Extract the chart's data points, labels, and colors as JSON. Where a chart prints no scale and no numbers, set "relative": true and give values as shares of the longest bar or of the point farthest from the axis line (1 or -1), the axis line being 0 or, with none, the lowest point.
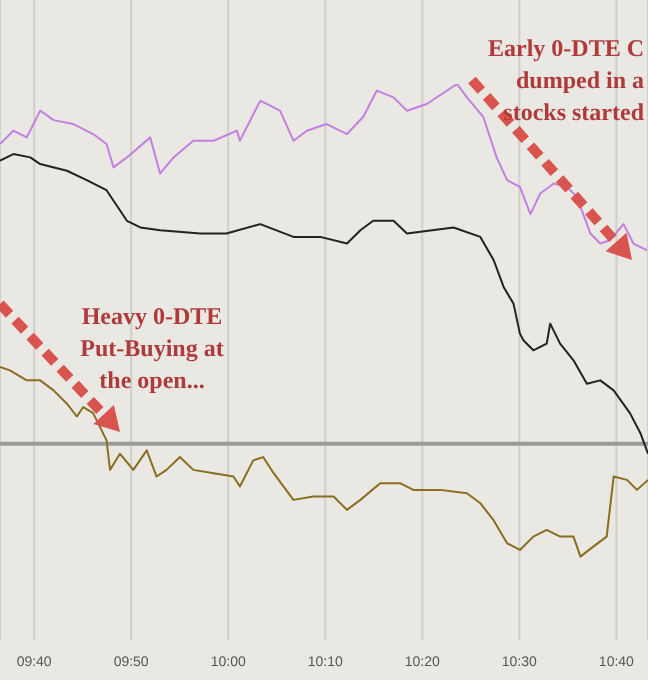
{
  "chart_data": {
    "type": "line",
    "relative": true,
    "grid": "x",
    "xlim": [
      9.608,
      10.721
    ],
    "xticks": [
      {
        "value": 9.6667,
        "label": "09:40"
      },
      {
        "value": 9.8333,
        "label": "09:50"
      },
      {
        "value": 10,
        "label": "10:00"
      },
      {
        "value": 10.1667,
        "label": "10:10"
      },
      {
        "value": 10.3333,
        "label": "10:20"
      },
      {
        "value": 10.5,
        "label": "10:30"
      },
      {
        "value": 10.6667,
        "label": "10:40"
      }
    ],
    "annotations": [
      "Early 0-DTE C\ndumped in a\nstocks started",
      "Heavy 0-DTE\nPut-Buying at\nthe open..."
    ],
    "ref_lines": [
      {
        "axis": "y",
        "value": 0.353,
        "color": "#9a9a9a"
      }
    ],
    "series": [
      {
        "color": "#c47fe0",
        "x": [
          9.608,
          9.631,
          9.654,
          9.677,
          9.7,
          9.734,
          9.768,
          9.791,
          9.803,
          9.826,
          9.866,
          9.883,
          9.906,
          9.94,
          9.975,
          10.015,
          10.02,
          10.055,
          10.089,
          10.112,
          10.135,
          10.169,
          10.204,
          10.232,
          10.255,
          10.284,
          10.307,
          10.341,
          10.393,
          10.41,
          10.438,
          10.461,
          10.479,
          10.501,
          10.519,
          10.536,
          10.559,
          10.582,
          10.599,
          10.622,
          10.639,
          10.656,
          10.679,
          10.696,
          10.719
        ],
        "values": [
          0.892,
          0.916,
          0.904,
          0.952,
          0.935,
          0.928,
          0.91,
          0.892,
          0.85,
          0.868,
          0.904,
          0.839,
          0.868,
          0.898,
          0.898,
          0.916,
          0.898,
          0.97,
          0.952,
          0.898,
          0.916,
          0.928,
          0.91,
          0.941,
          0.988,
          0.976,
          0.952,
          0.964,
          1.0,
          0.976,
          0.941,
          0.868,
          0.827,
          0.815,
          0.766,
          0.803,
          0.821,
          0.815,
          0.797,
          0.731,
          0.713,
          0.719,
          0.748,
          0.713,
          0.701
        ]
      },
      {
        "color": "#222222",
        "x": [
          9.608,
          9.631,
          9.66,
          9.677,
          9.723,
          9.757,
          9.791,
          9.826,
          9.849,
          9.883,
          9.952,
          9.997,
          10.055,
          10.112,
          10.158,
          10.204,
          10.227,
          10.249,
          10.284,
          10.307,
          10.387,
          10.433,
          10.456,
          10.473,
          10.49,
          10.501,
          10.507,
          10.524,
          10.547,
          10.553,
          10.57,
          10.593,
          10.616,
          10.639,
          10.662,
          10.69,
          10.708,
          10.721
        ],
        "values": [
          0.862,
          0.874,
          0.868,
          0.856,
          0.844,
          0.827,
          0.809,
          0.754,
          0.742,
          0.737,
          0.731,
          0.731,
          0.748,
          0.725,
          0.725,
          0.713,
          0.737,
          0.754,
          0.754,
          0.731,
          0.742,
          0.725,
          0.683,
          0.635,
          0.605,
          0.551,
          0.539,
          0.521,
          0.533,
          0.569,
          0.533,
          0.503,
          0.461,
          0.467,
          0.449,
          0.408,
          0.372,
          0.335
        ]
      },
      {
        "color": "#8a6d1e",
        "x": [
          9.608,
          9.625,
          9.654,
          9.677,
          9.7,
          9.723,
          9.74,
          9.751,
          9.768,
          9.791,
          9.797,
          9.814,
          9.837,
          9.86,
          9.877,
          9.894,
          9.917,
          9.94,
          9.975,
          10.009,
          10.02,
          10.043,
          10.06,
          10.078,
          10.112,
          10.146,
          10.181,
          10.204,
          10.227,
          10.261,
          10.295,
          10.318,
          10.364,
          10.41,
          10.433,
          10.456,
          10.479,
          10.501,
          10.524,
          10.547,
          10.57,
          10.593,
          10.605,
          10.627,
          10.65,
          10.662,
          10.685,
          10.702,
          10.721
        ],
        "values": [
          0.491,
          0.485,
          0.467,
          0.467,
          0.449,
          0.425,
          0.402,
          0.419,
          0.408,
          0.359,
          0.306,
          0.335,
          0.306,
          0.341,
          0.294,
          0.306,
          0.329,
          0.306,
          0.3,
          0.294,
          0.276,
          0.323,
          0.329,
          0.3,
          0.252,
          0.258,
          0.258,
          0.234,
          0.252,
          0.282,
          0.282,
          0.27,
          0.27,
          0.264,
          0.246,
          0.215,
          0.174,
          0.162,
          0.186,
          0.198,
          0.186,
          0.186,
          0.15,
          0.168,
          0.186,
          0.294,
          0.288,
          0.27,
          0.288
        ]
      }
    ]
  }
}
